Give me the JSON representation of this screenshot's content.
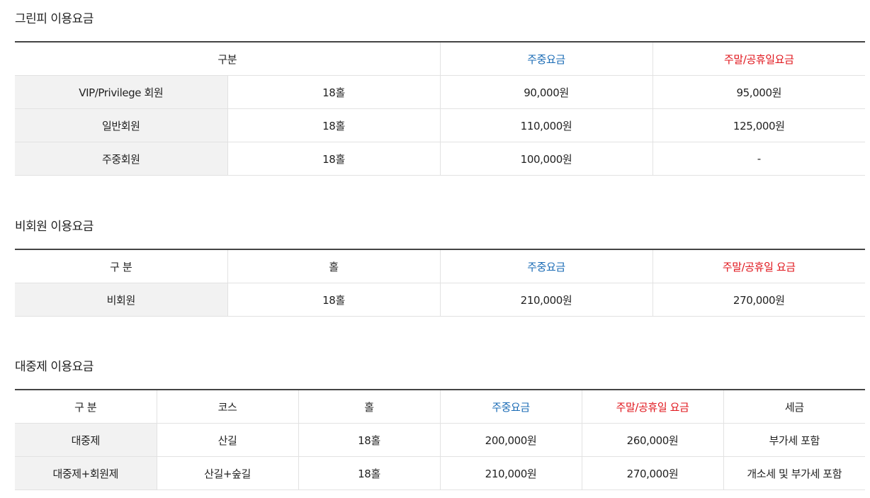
{
  "greenfee": {
    "title": "그린피 이용요금",
    "headers": {
      "category": "구분",
      "weekday": "주중요금",
      "weekend": "주말/공휴일요금"
    },
    "rows": [
      {
        "type": "VIP/Privilege 회원",
        "holes": "18홀",
        "weekday": "90,000원",
        "weekend": "95,000원"
      },
      {
        "type": "일반회원",
        "holes": "18홀",
        "weekday": "110,000원",
        "weekend": "125,000원"
      },
      {
        "type": "주중회원",
        "holes": "18홀",
        "weekday": "100,000원",
        "weekend": "-"
      }
    ]
  },
  "nonmember": {
    "title": "비회원 이용요금",
    "headers": {
      "category": "구 분",
      "holes": "홀",
      "weekday": "주중요금",
      "weekend": "주말/공휴일 요금"
    },
    "rows": [
      {
        "type": "비회원",
        "holes": "18홀",
        "weekday": "210,000원",
        "weekend": "270,000원"
      }
    ]
  },
  "public": {
    "title": "대중제 이용요금",
    "headers": {
      "category": "구 분",
      "course": "코스",
      "holes": "홀",
      "weekday": "주중요금",
      "weekend": "주말/공휴일 요금",
      "tax": "세금"
    },
    "rows": [
      {
        "type": "대중제",
        "course": "산길",
        "holes": "18홀",
        "weekday": "200,000원",
        "weekend": "260,000원",
        "tax": "부가세 포함"
      },
      {
        "type": "대중제+회원제",
        "course": "산길+숲길",
        "holes": "18홀",
        "weekday": "210,000원",
        "weekend": "270,000원",
        "tax": "개소세 및 부가세 포함"
      }
    ]
  },
  "colors": {
    "weekday": "#1a6bb5",
    "weekend": "#e0141b",
    "row_header_bg": "#f2f2f2"
  }
}
